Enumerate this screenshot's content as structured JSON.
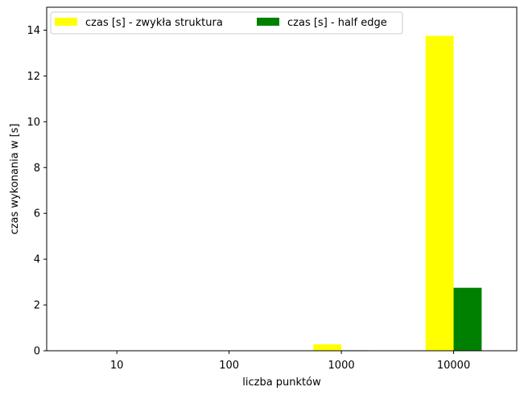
{
  "chart_data": {
    "type": "bar",
    "categories": [
      "10",
      "100",
      "1000",
      "10000"
    ],
    "series": [
      {
        "name": "czas [s] - zwykła struktura",
        "color": "#ffff00",
        "values": [
          0.001,
          0.005,
          0.28,
          13.75
        ]
      },
      {
        "name": "czas [s] - half edge",
        "color": "#008000",
        "values": [
          0.0005,
          0.002,
          0.02,
          2.75
        ]
      }
    ],
    "xlabel": "liczba punktów",
    "ylabel": "czas wykonania w [s]",
    "ylim": [
      0,
      15
    ],
    "yticks": [
      0,
      2,
      4,
      6,
      8,
      10,
      12,
      14
    ],
    "grid": false,
    "legend_position": "top-left"
  }
}
